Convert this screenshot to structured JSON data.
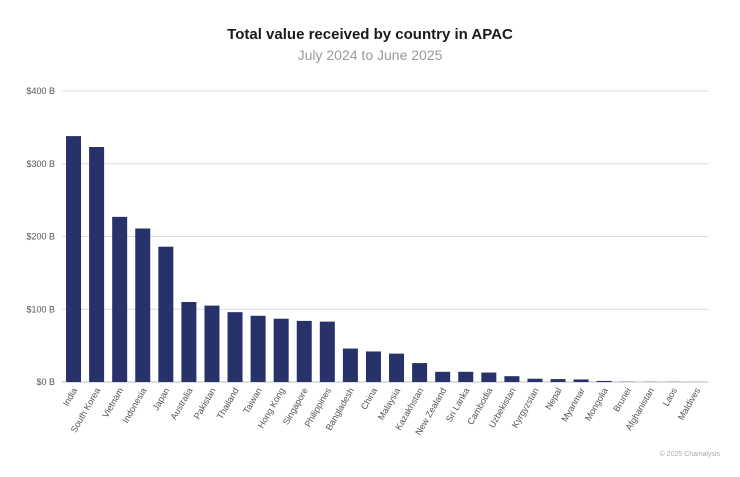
{
  "chart_data": {
    "type": "bar",
    "title": "Total value received by country in APAC",
    "subtitle": "July 2024 to June 2025",
    "categories": [
      "India",
      "South Korea",
      "Vietnam",
      "Indonesia",
      "Japan",
      "Australia",
      "Pakistan",
      "Thailand",
      "Taiwan",
      "Hong Kong",
      "Singapore",
      "Philippines",
      "Bangladesh",
      "China",
      "Malaysia",
      "Kazakhstan",
      "New Zealand",
      "Sri Lanka",
      "Cambodia",
      "Uzbekistan",
      "Kyrgyzstan",
      "Nepal",
      "Myanmar",
      "Mongolia",
      "Brunei",
      "Afghanistan",
      "Laos",
      "Maldives"
    ],
    "values": [
      338,
      323,
      227,
      211,
      186,
      110,
      105,
      96,
      91,
      87,
      84,
      83,
      46,
      42,
      39,
      26,
      14,
      14,
      13,
      8,
      4.5,
      4,
      3.5,
      1.5,
      0.3,
      0.2,
      0.2,
      0.1
    ],
    "yticks": [
      "$0 B",
      "$100 B",
      "$200 B",
      "$300 B",
      "$400 B"
    ],
    "ylim": [
      0,
      400
    ],
    "grid": true,
    "colors": {
      "bar": "#27326b",
      "grid": "#dcdcdc",
      "tick_text": "#555555"
    }
  },
  "credit": "© 2025 Chainalysis"
}
